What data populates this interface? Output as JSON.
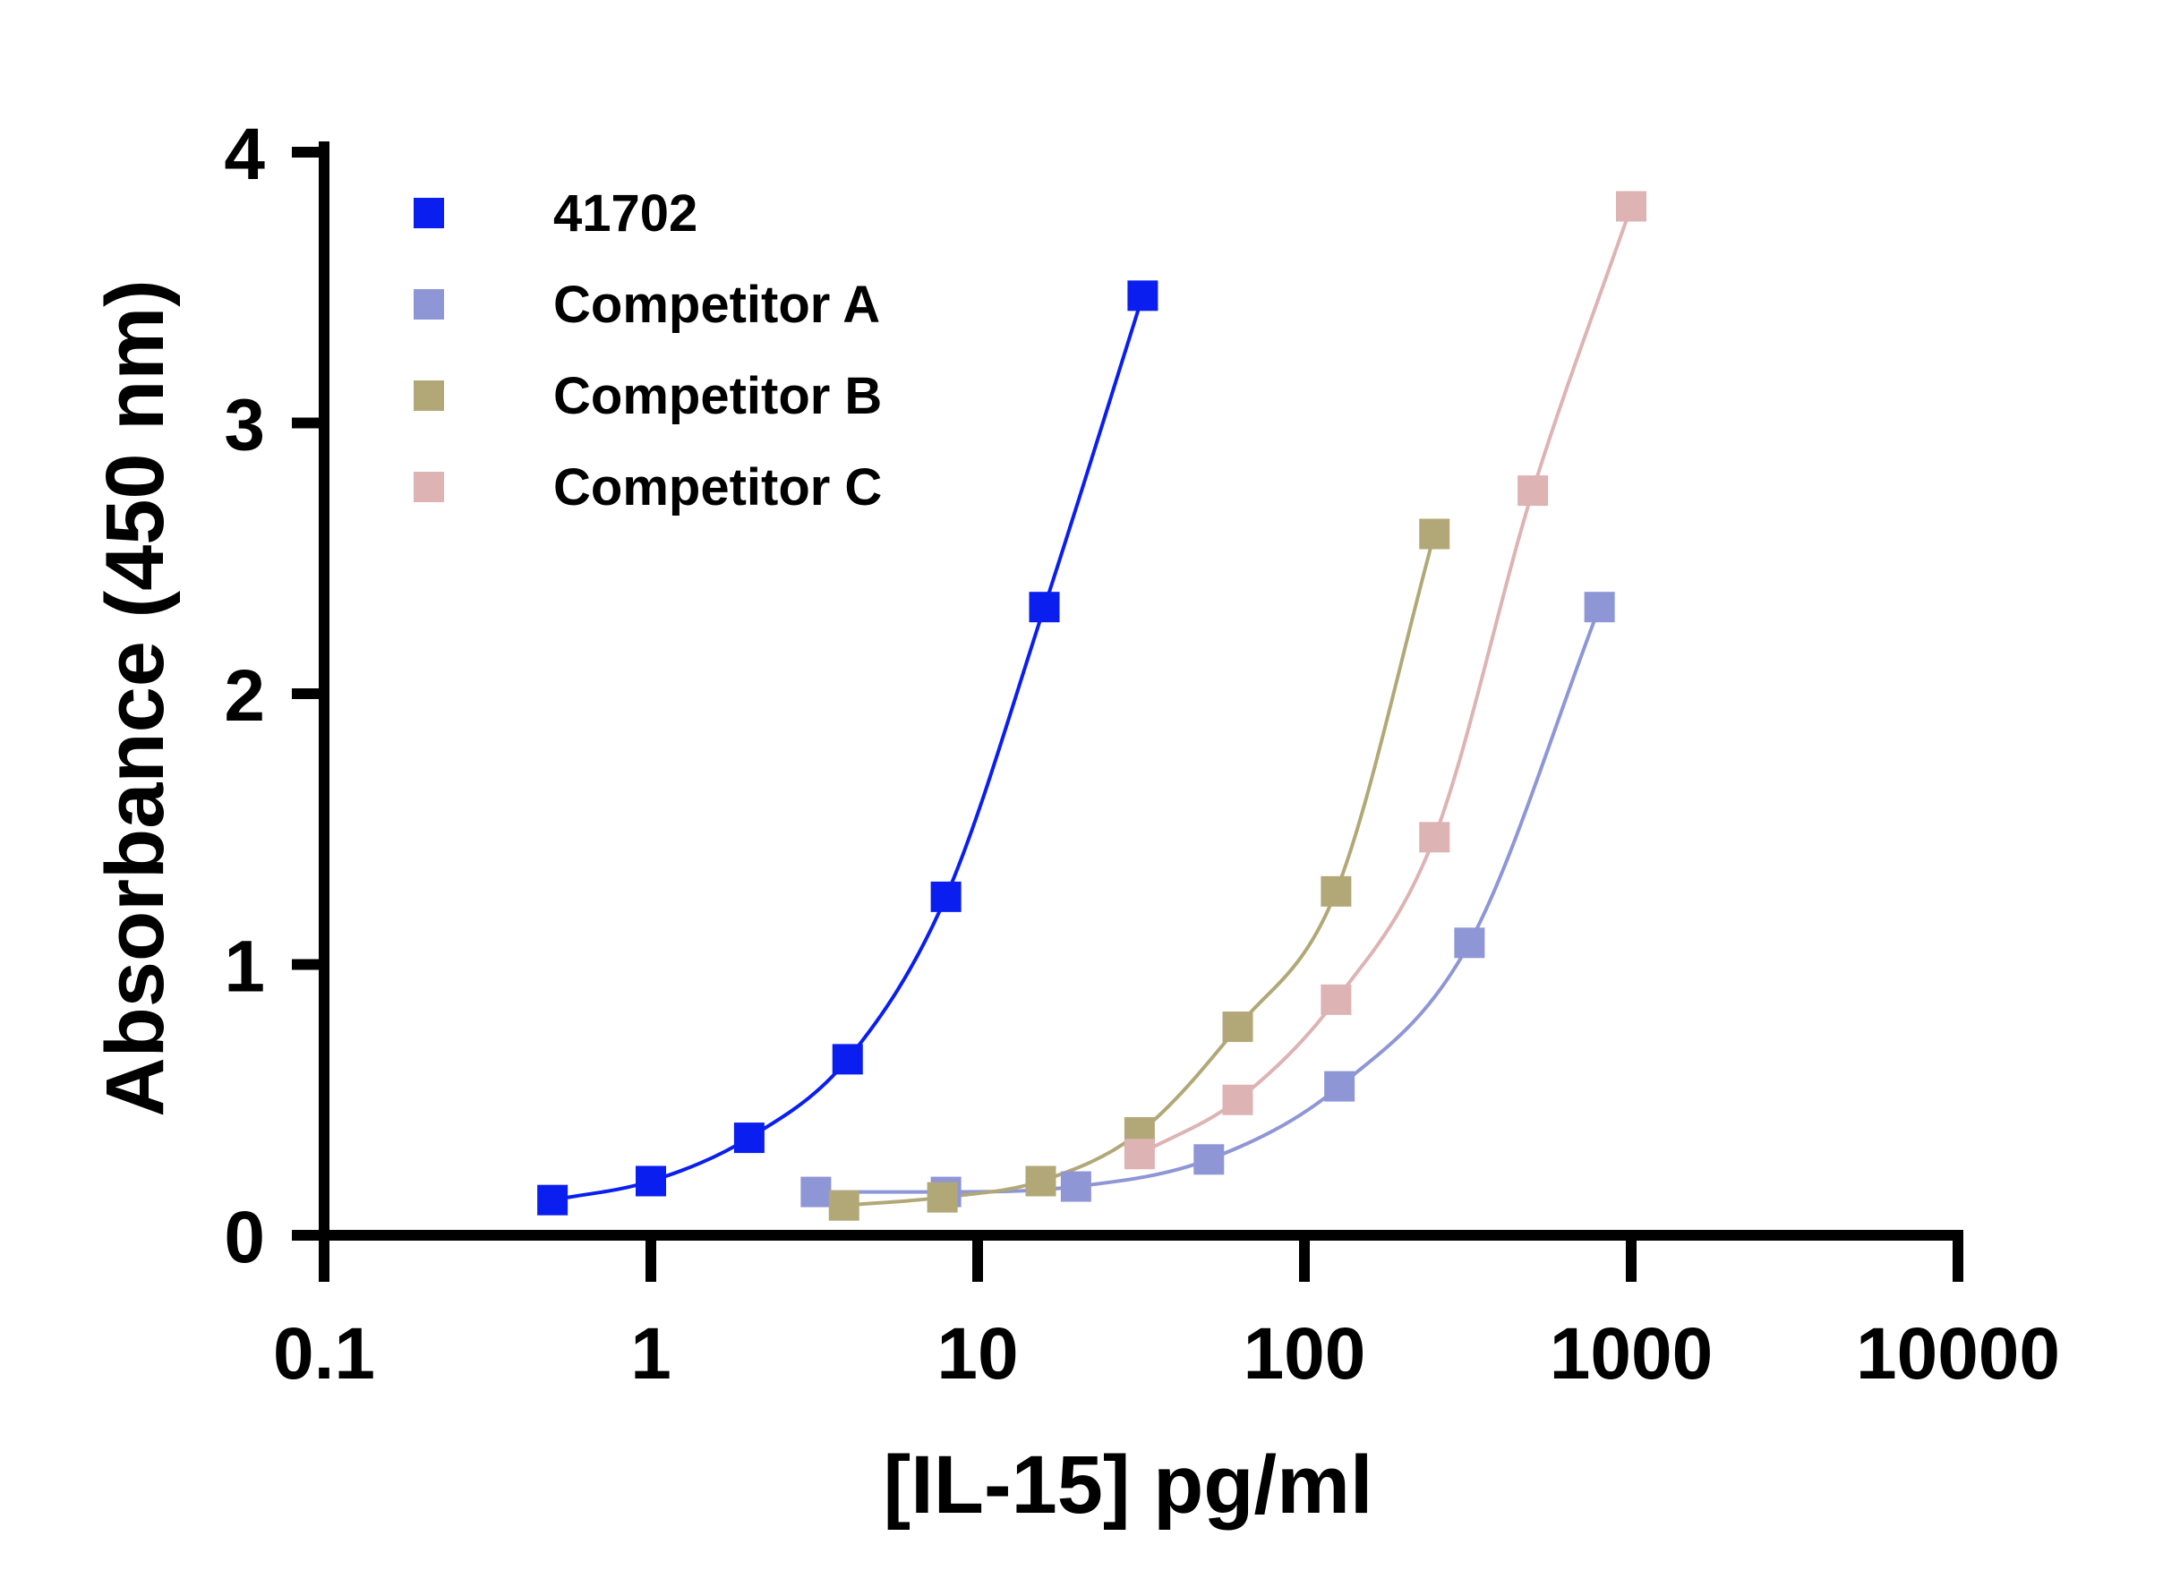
{
  "chart_data": {
    "type": "scatter",
    "xlabel": "[IL-15] pg/ml",
    "ylabel": "Absorbance (450 nm)",
    "xscale": "log",
    "xlim": [
      0.1,
      10000
    ],
    "ylim": [
      0,
      4
    ],
    "x_ticks": [
      "0.1",
      "1",
      "10",
      "100",
      "1000",
      "10000"
    ],
    "y_ticks": [
      "0",
      "1",
      "2",
      "3",
      "4"
    ],
    "grid": false,
    "legend_position": "top-left",
    "series": [
      {
        "name": "41702",
        "color": "#0a1ef0",
        "x": [
          0.5,
          1,
          2,
          4,
          8,
          16,
          32
        ],
        "y": [
          0.13,
          0.2,
          0.36,
          0.65,
          1.25,
          2.32,
          3.47
        ]
      },
      {
        "name": "Competitor A",
        "color": "#8e96d6",
        "x": [
          3.2,
          8,
          20,
          51,
          128,
          320,
          800
        ],
        "y": [
          0.16,
          0.16,
          0.18,
          0.28,
          0.55,
          1.08,
          2.32
        ]
      },
      {
        "name": "Competitor B",
        "color": "#b2a877",
        "x": [
          3.9,
          7.8,
          15.6,
          31.3,
          62.5,
          125,
          250
        ],
        "y": [
          0.11,
          0.14,
          0.2,
          0.38,
          0.77,
          1.27,
          2.59
        ]
      },
      {
        "name": "Competitor C",
        "color": "#ddb3b3",
        "x": [
          31.3,
          62.5,
          125,
          250,
          500,
          1000
        ],
        "y": [
          0.3,
          0.5,
          0.87,
          1.47,
          2.75,
          3.8
        ]
      }
    ]
  }
}
